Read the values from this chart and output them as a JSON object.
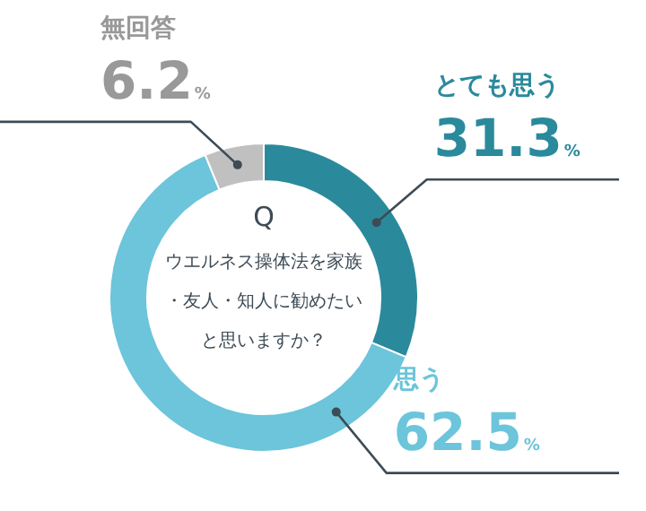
{
  "chart_data": {
    "type": "donut",
    "title": "Q",
    "subtitle": "ウエルネス操体法を家族・友人・知人に勧めたいと思いますか？",
    "categories": [
      "とても思う",
      "思う",
      "無回答"
    ],
    "values": [
      31.3,
      62.5,
      6.2
    ],
    "value_labels": [
      "31.3%",
      "62.5%",
      "6.2%"
    ],
    "colors": [
      "#2a8a9c",
      "#6cc5da",
      "#c0c0c0"
    ]
  }
}
